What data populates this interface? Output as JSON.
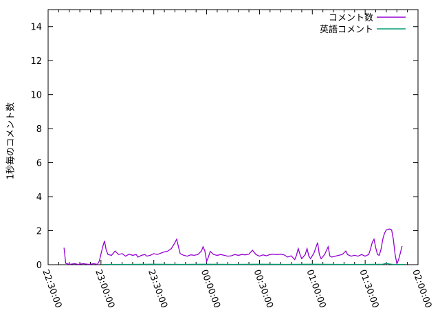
{
  "chart_data": {
    "type": "line",
    "title": "",
    "xlabel": "",
    "ylabel": "1秒毎のコメント数",
    "grid": false,
    "legend_position": "top-right-inside",
    "axis_color": "#000000",
    "background_color": "#ffffff",
    "ylim": [
      0,
      15
    ],
    "yticks": [
      0,
      2,
      4,
      6,
      8,
      10,
      12,
      14
    ],
    "x_range_minutes": [
      0,
      210
    ],
    "x_minor_step_minutes": 6,
    "x_ticks": [
      {
        "label": "22:30:00",
        "t": 0
      },
      {
        "label": "23:00:00",
        "t": 30
      },
      {
        "label": "23:30:00",
        "t": 60
      },
      {
        "label": "00:00:00",
        "t": 90
      },
      {
        "label": "00:30:00",
        "t": 120
      },
      {
        "label": "01:00:00",
        "t": 150
      },
      {
        "label": "01:30:00",
        "t": 180
      },
      {
        "label": "02:00:00",
        "t": 210
      }
    ],
    "series": [
      {
        "name": "コメント数",
        "key": "comments",
        "color": "#9400d3",
        "points": [
          [
            9,
            1.0
          ],
          [
            10,
            0.08
          ],
          [
            12,
            0.02
          ],
          [
            15,
            0.06
          ],
          [
            17,
            0.02
          ],
          [
            20,
            0.06
          ],
          [
            23,
            0.02
          ],
          [
            26,
            0.06
          ],
          [
            28,
            0.02
          ],
          [
            29,
            0.2
          ],
          [
            31,
            1.05
          ],
          [
            32,
            1.4
          ],
          [
            33,
            0.85
          ],
          [
            34,
            0.6
          ],
          [
            36,
            0.55
          ],
          [
            38,
            0.8
          ],
          [
            40,
            0.6
          ],
          [
            42,
            0.65
          ],
          [
            44,
            0.5
          ],
          [
            46,
            0.62
          ],
          [
            48,
            0.55
          ],
          [
            50,
            0.6
          ],
          [
            51,
            0.45
          ],
          [
            53,
            0.55
          ],
          [
            55,
            0.6
          ],
          [
            56,
            0.5
          ],
          [
            58,
            0.55
          ],
          [
            60,
            0.65
          ],
          [
            62,
            0.6
          ],
          [
            64,
            0.68
          ],
          [
            66,
            0.75
          ],
          [
            68,
            0.8
          ],
          [
            70,
            0.95
          ],
          [
            72,
            1.3
          ],
          [
            73,
            1.5
          ],
          [
            74,
            1.05
          ],
          [
            75,
            0.65
          ],
          [
            77,
            0.55
          ],
          [
            79,
            0.5
          ],
          [
            81,
            0.58
          ],
          [
            83,
            0.55
          ],
          [
            85,
            0.6
          ],
          [
            87,
            0.8
          ],
          [
            88,
            1.05
          ],
          [
            89,
            0.8
          ],
          [
            90,
            0.2
          ],
          [
            91,
            0.45
          ],
          [
            92,
            0.78
          ],
          [
            94,
            0.6
          ],
          [
            96,
            0.55
          ],
          [
            98,
            0.6
          ],
          [
            100,
            0.55
          ],
          [
            102,
            0.5
          ],
          [
            104,
            0.52
          ],
          [
            106,
            0.6
          ],
          [
            108,
            0.55
          ],
          [
            110,
            0.6
          ],
          [
            112,
            0.58
          ],
          [
            114,
            0.62
          ],
          [
            116,
            0.85
          ],
          [
            118,
            0.6
          ],
          [
            120,
            0.5
          ],
          [
            122,
            0.58
          ],
          [
            124,
            0.52
          ],
          [
            126,
            0.6
          ],
          [
            128,
            0.62
          ],
          [
            130,
            0.6
          ],
          [
            132,
            0.62
          ],
          [
            134,
            0.58
          ],
          [
            136,
            0.45
          ],
          [
            138,
            0.52
          ],
          [
            140,
            0.3
          ],
          [
            141,
            0.55
          ],
          [
            142,
            0.95
          ],
          [
            143,
            0.6
          ],
          [
            144,
            0.35
          ],
          [
            146,
            0.6
          ],
          [
            147,
            0.95
          ],
          [
            148,
            0.5
          ],
          [
            149,
            0.35
          ],
          [
            151,
            0.7
          ],
          [
            153,
            1.3
          ],
          [
            154,
            0.6
          ],
          [
            155,
            0.35
          ],
          [
            157,
            0.6
          ],
          [
            159,
            1.05
          ],
          [
            160,
            0.5
          ],
          [
            161,
            0.45
          ],
          [
            163,
            0.5
          ],
          [
            165,
            0.55
          ],
          [
            167,
            0.6
          ],
          [
            169,
            0.8
          ],
          [
            170,
            0.6
          ],
          [
            172,
            0.5
          ],
          [
            174,
            0.55
          ],
          [
            176,
            0.5
          ],
          [
            178,
            0.6
          ],
          [
            180,
            0.5
          ],
          [
            182,
            0.6
          ],
          [
            183,
            0.9
          ],
          [
            184,
            1.3
          ],
          [
            185,
            1.5
          ],
          [
            186,
            1.0
          ],
          [
            187,
            0.6
          ],
          [
            188,
            0.55
          ],
          [
            189,
            0.9
          ],
          [
            190,
            1.5
          ],
          [
            191,
            1.85
          ],
          [
            192,
            2.05
          ],
          [
            194,
            2.1
          ],
          [
            195,
            2.05
          ],
          [
            196,
            1.5
          ],
          [
            197,
            0.6
          ],
          [
            198,
            0.05
          ],
          [
            199,
            0.3
          ],
          [
            200,
            0.7
          ],
          [
            201,
            1.1
          ]
        ]
      },
      {
        "name": "英語コメント",
        "key": "english-comments",
        "color": "#009e73",
        "points": [
          [
            31,
            0.02
          ],
          [
            45,
            0.02
          ],
          [
            60,
            0.03
          ],
          [
            75,
            0.02
          ],
          [
            90,
            0.03
          ],
          [
            105,
            0.02
          ],
          [
            120,
            0.03
          ],
          [
            135,
            0.02
          ],
          [
            150,
            0.03
          ],
          [
            165,
            0.02
          ],
          [
            180,
            0.02
          ],
          [
            190,
            0.03
          ],
          [
            192,
            0.08
          ],
          [
            194,
            0.04
          ],
          [
            196,
            0.02
          ],
          [
            203,
            0.02
          ]
        ]
      }
    ]
  }
}
